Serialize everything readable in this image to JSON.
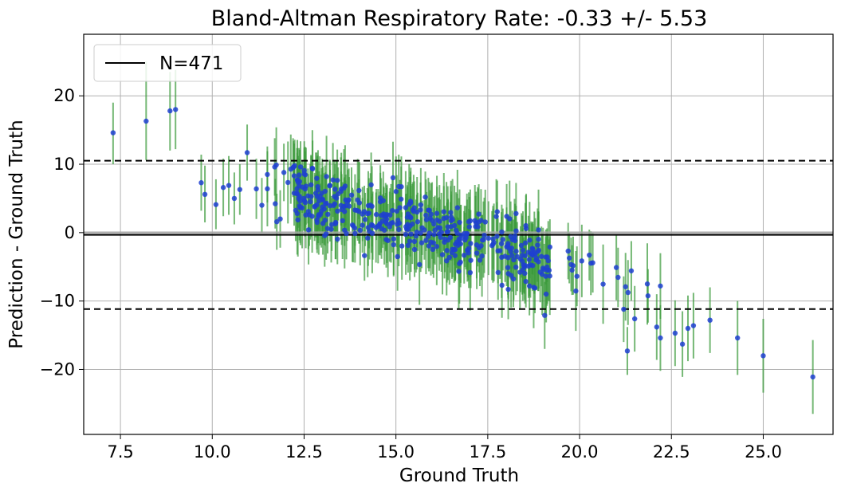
{
  "chart_data": {
    "type": "scatter",
    "title": "Bland-Altman Respiratory Rate: -0.33 +/- 5.53",
    "xlabel": "Ground Truth",
    "ylabel": "Prediction - Ground Truth",
    "xlim": [
      6.5,
      26.9
    ],
    "ylim": [
      -29.5,
      29.0
    ],
    "xticks": [
      7.5,
      10.0,
      12.5,
      15.0,
      17.5,
      20.0,
      22.5,
      25.0
    ],
    "yticks": [
      -20,
      -10,
      0,
      10,
      20
    ],
    "grid": true,
    "legend": {
      "position": "top-left",
      "entries": [
        "N=471"
      ]
    },
    "mean_line": -0.33,
    "limits_of_agreement": [
      10.51,
      -11.17
    ],
    "colors": {
      "points": "#1f3fd1",
      "error_bars": "#3a9a3a",
      "mean": "#000000",
      "loa": "#000000",
      "grid": "#b0b0b0"
    },
    "points": [
      {
        "x": 7.3,
        "y": 14.6,
        "lo": 10.0,
        "hi": 19.0
      },
      {
        "x": 8.2,
        "y": 16.3,
        "lo": 10.6,
        "hi": 25.0
      },
      {
        "x": 8.85,
        "y": 17.8,
        "lo": 12.0,
        "hi": 23.5
      },
      {
        "x": 9.0,
        "y": 18.0,
        "lo": 12.2,
        "hi": 23.8
      },
      {
        "x": 9.7,
        "y": 7.3,
        "lo": 3.2,
        "hi": 11.4
      },
      {
        "x": 9.8,
        "y": 5.6,
        "lo": 1.5,
        "hi": 9.8
      },
      {
        "x": 10.1,
        "y": 4.1,
        "lo": 0.5,
        "hi": 7.8
      },
      {
        "x": 10.3,
        "y": 6.6,
        "lo": 2.4,
        "hi": 10.8
      },
      {
        "x": 10.45,
        "y": 6.9,
        "lo": 2.6,
        "hi": 11.2
      },
      {
        "x": 10.6,
        "y": 5.0,
        "lo": 1.2,
        "hi": 8.8
      },
      {
        "x": 10.75,
        "y": 6.3,
        "lo": 2.6,
        "hi": 10.0
      },
      {
        "x": 10.95,
        "y": 11.7,
        "lo": 7.6,
        "hi": 15.8
      },
      {
        "x": 11.2,
        "y": 6.4,
        "lo": 2.0,
        "hi": 10.8
      },
      {
        "x": 11.35,
        "y": 4.0,
        "lo": 0.0,
        "hi": 8.0
      },
      {
        "x": 11.5,
        "y": 8.5,
        "lo": 4.4,
        "hi": 12.6
      },
      {
        "x": 11.7,
        "y": 9.6,
        "lo": 5.4,
        "hi": 13.8
      },
      {
        "x": 11.85,
        "y": 2.0,
        "lo": -2.2,
        "hi": 6.2
      },
      {
        "x": 11.95,
        "y": 8.8,
        "lo": 4.6,
        "hi": 13.0
      },
      {
        "x": 12.2,
        "y": 9.5,
        "lo": 5.2,
        "hi": 13.8
      },
      {
        "x": 22.1,
        "y": -13.8,
        "lo": -18.6,
        "hi": -9.0
      },
      {
        "x": 22.2,
        "y": -15.4,
        "lo": -20.2,
        "hi": -10.6
      },
      {
        "x": 22.6,
        "y": -14.7,
        "lo": -19.5,
        "hi": -9.9
      },
      {
        "x": 22.8,
        "y": -16.3,
        "lo": -21.1,
        "hi": -11.5
      },
      {
        "x": 22.95,
        "y": -14.0,
        "lo": -18.8,
        "hi": -9.2
      },
      {
        "x": 23.1,
        "y": -13.6,
        "lo": -18.4,
        "hi": -8.8
      },
      {
        "x": 23.55,
        "y": -12.8,
        "lo": -17.6,
        "hi": -8.0
      },
      {
        "x": 24.3,
        "y": -15.4,
        "lo": -20.8,
        "hi": -10.0
      },
      {
        "x": 25.0,
        "y": -18.0,
        "lo": -23.4,
        "hi": -12.6
      },
      {
        "x": 26.35,
        "y": -21.1,
        "lo": -26.5,
        "hi": -15.7
      },
      {
        "x": 19.05,
        "y": -12.1,
        "lo": -17.0,
        "hi": -7.2
      },
      {
        "x": 21.3,
        "y": -17.3,
        "lo": -20.8,
        "hi": -13.8
      },
      {
        "x": 21.2,
        "y": -11.2,
        "lo": -16.0,
        "hi": -6.4
      },
      {
        "x": 21.0,
        "y": -5.1,
        "lo": -9.9,
        "hi": -0.3
      },
      {
        "x": 22.2,
        "y": -7.8,
        "lo": -12.6,
        "hi": -3.0
      },
      {
        "x": 21.5,
        "y": -12.6,
        "lo": -17.4,
        "hi": -7.8
      }
    ],
    "cloud": {
      "x_range": [
        11.4,
        21.9
      ],
      "intercept_at": 11.4,
      "intercept_y": 7.0,
      "slope": -1.45,
      "spread": 3.2,
      "count": 436
    }
  }
}
